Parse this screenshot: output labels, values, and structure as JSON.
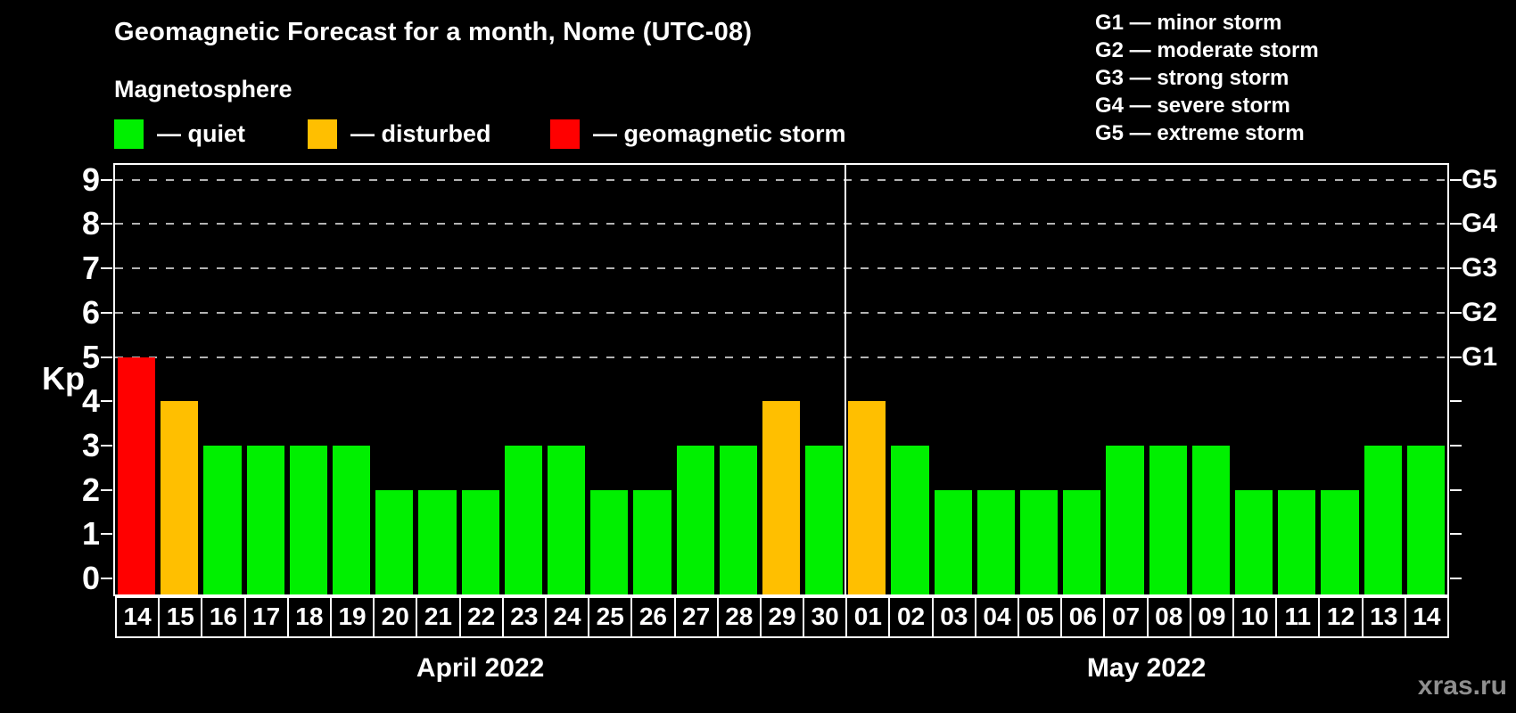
{
  "title": "Geomagnetic Forecast for a month, Nome (UTC-08)",
  "subtitle": "Magnetosphere",
  "colors": {
    "quiet": "#00f000",
    "disturbed": "#ffbf00",
    "storm": "#ff0000"
  },
  "legend": {
    "items": [
      {
        "key": "quiet",
        "label": "— quiet"
      },
      {
        "key": "disturbed",
        "label": "— disturbed"
      },
      {
        "key": "storm",
        "label": "— geomagnetic storm"
      }
    ]
  },
  "g_legend": [
    "G1 — minor storm",
    "G2 — moderate storm",
    "G3 — strong storm",
    "G4 — severe storm",
    "G5 — extreme storm"
  ],
  "watermark": "xras.ru",
  "chart_data": {
    "type": "bar",
    "ylabel": "Kp",
    "ylim": [
      0,
      9
    ],
    "y_ticks": [
      0,
      1,
      2,
      3,
      4,
      5,
      6,
      7,
      8,
      9
    ],
    "gridlines_at": [
      5,
      6,
      7,
      8,
      9
    ],
    "grid": "dashed horizontal at storm levels only",
    "legend_position": "top",
    "right_axis_labels": [
      {
        "label": "G1",
        "kp": 5
      },
      {
        "label": "G2",
        "kp": 6
      },
      {
        "label": "G3",
        "kp": 7
      },
      {
        "label": "G4",
        "kp": 8
      },
      {
        "label": "G5",
        "kp": 9
      }
    ],
    "months": [
      {
        "label": "April 2022",
        "days": [
          {
            "day": "14",
            "kp": 5,
            "status": "storm"
          },
          {
            "day": "15",
            "kp": 4,
            "status": "disturbed"
          },
          {
            "day": "16",
            "kp": 3,
            "status": "quiet"
          },
          {
            "day": "17",
            "kp": 3,
            "status": "quiet"
          },
          {
            "day": "18",
            "kp": 3,
            "status": "quiet"
          },
          {
            "day": "19",
            "kp": 3,
            "status": "quiet"
          },
          {
            "day": "20",
            "kp": 2,
            "status": "quiet"
          },
          {
            "day": "21",
            "kp": 2,
            "status": "quiet"
          },
          {
            "day": "22",
            "kp": 2,
            "status": "quiet"
          },
          {
            "day": "23",
            "kp": 3,
            "status": "quiet"
          },
          {
            "day": "24",
            "kp": 3,
            "status": "quiet"
          },
          {
            "day": "25",
            "kp": 2,
            "status": "quiet"
          },
          {
            "day": "26",
            "kp": 2,
            "status": "quiet"
          },
          {
            "day": "27",
            "kp": 3,
            "status": "quiet"
          },
          {
            "day": "28",
            "kp": 3,
            "status": "quiet"
          },
          {
            "day": "29",
            "kp": 4,
            "status": "disturbed"
          },
          {
            "day": "30",
            "kp": 3,
            "status": "quiet"
          }
        ]
      },
      {
        "label": "May 2022",
        "days": [
          {
            "day": "01",
            "kp": 4,
            "status": "disturbed"
          },
          {
            "day": "02",
            "kp": 3,
            "status": "quiet"
          },
          {
            "day": "03",
            "kp": 2,
            "status": "quiet"
          },
          {
            "day": "04",
            "kp": 2,
            "status": "quiet"
          },
          {
            "day": "05",
            "kp": 2,
            "status": "quiet"
          },
          {
            "day": "06",
            "kp": 2,
            "status": "quiet"
          },
          {
            "day": "07",
            "kp": 3,
            "status": "quiet"
          },
          {
            "day": "08",
            "kp": 3,
            "status": "quiet"
          },
          {
            "day": "09",
            "kp": 3,
            "status": "quiet"
          },
          {
            "day": "10",
            "kp": 2,
            "status": "quiet"
          },
          {
            "day": "11",
            "kp": 2,
            "status": "quiet"
          },
          {
            "day": "12",
            "kp": 2,
            "status": "quiet"
          },
          {
            "day": "13",
            "kp": 3,
            "status": "quiet"
          },
          {
            "day": "14",
            "kp": 3,
            "status": "quiet"
          }
        ]
      }
    ]
  }
}
